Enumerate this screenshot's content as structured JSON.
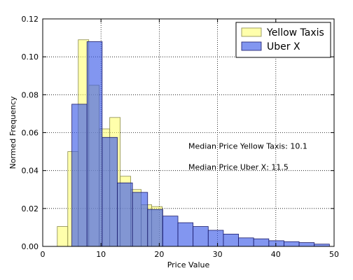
{
  "chart_data": {
    "type": "bar",
    "xlabel": "Price Value",
    "ylabel": "Normed Frequency",
    "xlim": [
      0,
      50
    ],
    "ylim": [
      0,
      0.12
    ],
    "xticks": [
      0,
      10,
      20,
      30,
      40,
      50
    ],
    "yticks": [
      0.0,
      0.02,
      0.04,
      0.06,
      0.08,
      0.1,
      0.12
    ],
    "ytick_labels": [
      "0.00",
      "0.02",
      "0.04",
      "0.06",
      "0.08",
      "0.10",
      "0.12"
    ],
    "grid": true,
    "legend_position": "top-right",
    "series": [
      {
        "name": "Yellow Taxis",
        "color": "#ffff66",
        "edge_color": "#8a8a4a",
        "alpha": 0.55,
        "bin_edges": [
          2.5,
          4.3,
          6.1,
          7.9,
          9.7,
          11.5,
          13.3,
          15.1,
          16.9,
          18.7,
          20.5
        ],
        "values": [
          0.0105,
          0.05,
          0.109,
          0.085,
          0.062,
          0.068,
          0.037,
          0.03,
          0.022,
          0.021
        ]
      },
      {
        "name": "Uber X",
        "color": "#3f5ee8",
        "edge_color": "#1a1a6a",
        "alpha": 0.65,
        "bin_edges": [
          5.0,
          7.6,
          10.2,
          12.8,
          15.4,
          18.0,
          20.6,
          23.2,
          25.8,
          28.4,
          31.0,
          33.6,
          36.2,
          38.8,
          41.4,
          44.0,
          46.6,
          49.2
        ],
        "values": [
          0.075,
          0.108,
          0.0575,
          0.0335,
          0.0285,
          0.0195,
          0.016,
          0.0125,
          0.0105,
          0.0085,
          0.0065,
          0.0045,
          0.004,
          0.003,
          0.0025,
          0.002,
          0.0012
        ]
      }
    ],
    "annotations": [
      {
        "text": "Median Price Yellow Taxis: 10.1",
        "x": 25,
        "y": 0.0515
      },
      {
        "text": "Median Price Uber X: 11.5",
        "x": 25,
        "y": 0.0405
      }
    ]
  }
}
